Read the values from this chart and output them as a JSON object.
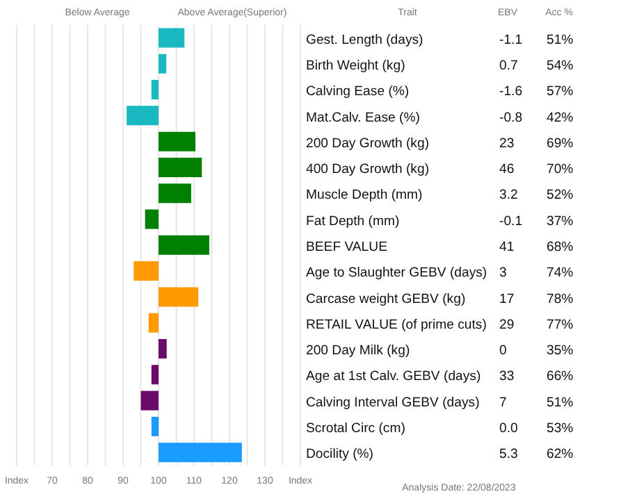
{
  "chart_data": {
    "type": "bar",
    "orientation": "horizontal",
    "ylabel": "Trait",
    "categories": [
      "Gest. Length (days)",
      "Birth Weight (kg)",
      "Calving Ease (%)",
      "Mat.Calv. Ease (%)",
      "200 Day Growth (kg)",
      "400 Day Growth (kg)",
      "Muscle Depth (mm)",
      "Fat Depth (mm)",
      "BEEF VALUE",
      "Age to Slaughter GEBV (days)",
      "Carcase weight GEBV (kg)",
      "RETAIL VALUE (of prime cuts)",
      "200 Day Milk (kg)",
      "Age at 1st Calv. GEBV (days)",
      "Calving Interval GEBV (days)",
      "Scrotal Circ (cm)",
      "Docility (%)"
    ],
    "values": [
      7.3,
      2.2,
      -2,
      -9,
      10.4,
      12.2,
      9.2,
      -3.8,
      14.3,
      -7,
      11.2,
      -2.8,
      2.3,
      -2,
      -5,
      -2,
      23.5
    ],
    "base": [
      100,
      100,
      100,
      100,
      100,
      100,
      100,
      100,
      100,
      100,
      100,
      100,
      100,
      100,
      100,
      100,
      100
    ],
    "colors": [
      "#1ab8c0",
      "#1ab8c0",
      "#1ab8c0",
      "#1ab8c0",
      "#008000",
      "#008000",
      "#008000",
      "#008000",
      "#008000",
      "#ff9a00",
      "#ff9a00",
      "#ff9a00",
      "#6b0a6b",
      "#6b0a6b",
      "#6b0a6b",
      "#1a9cff",
      "#1a9cff"
    ],
    "xlim": [
      60,
      140
    ],
    "xticks": [
      {
        "value": 60,
        "label": "Index"
      },
      {
        "value": 65,
        "label": null
      },
      70,
      {
        "value": 75,
        "label": null
      },
      80,
      {
        "value": 85,
        "label": null
      },
      90,
      {
        "value": 95,
        "label": null
      },
      100,
      {
        "value": 105,
        "label": null
      },
      110,
      {
        "value": 115,
        "label": null
      },
      120,
      {
        "value": 125,
        "label": null
      },
      130,
      {
        "value": 135,
        "label": null
      },
      {
        "value": 140,
        "label": "Index"
      }
    ],
    "grid": "x",
    "annotations": [
      "Below Average",
      "Above Average(Superior)",
      "EBV",
      "Acc %",
      "Analysis Date: 22/08/2023",
      "-1.1",
      "51%",
      "0.7",
      "54%",
      "-1.6",
      "57%",
      "-0.8",
      "42%",
      "23",
      "69%",
      "46",
      "70%",
      "3.2",
      "52%",
      "-0.1",
      "37%",
      "41",
      "68%",
      "3",
      "74%",
      "17",
      "78%",
      "29",
      "77%",
      "0",
      "35%",
      "33",
      "66%",
      "7",
      "51%",
      "0.0",
      "53%",
      "5.3",
      "62%"
    ]
  }
}
